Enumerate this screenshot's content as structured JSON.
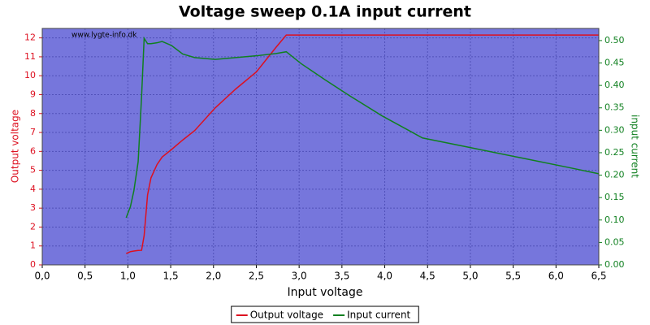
{
  "chart_data": {
    "type": "line",
    "title": "Voltage sweep 0.1A input current",
    "watermark": "www.lygte-info.dk",
    "x_label": "Input voltage",
    "y_label": "Output voltage",
    "y2_label": "input current",
    "x": [
      0.98,
      1.03,
      1.07,
      1.12,
      1.16,
      1.19,
      1.23,
      1.27,
      1.34,
      1.4,
      1.51,
      1.64,
      1.78,
      2.02,
      2.26,
      2.5,
      2.73,
      2.85,
      3.02,
      3.3,
      3.59,
      3.97,
      4.44,
      5.01,
      5.58,
      6.15,
      6.5
    ],
    "series": [
      {
        "name": "Output voltage",
        "color": "#dd1020",
        "axis": "y",
        "values": [
          0.6,
          0.7,
          0.73,
          0.76,
          0.77,
          1.55,
          3.7,
          4.6,
          5.3,
          5.7,
          6.1,
          6.6,
          7.1,
          8.3,
          9.3,
          10.2,
          11.5,
          12.15,
          12.15,
          12.15,
          12.15,
          12.15,
          12.15,
          12.15,
          12.15,
          12.15,
          12.15
        ]
      },
      {
        "name": "Input current",
        "color": "#108020",
        "axis": "y2",
        "values": [
          0.105,
          0.13,
          0.165,
          0.23,
          0.375,
          0.505,
          0.493,
          0.493,
          0.495,
          0.498,
          0.489,
          0.47,
          0.462,
          0.458,
          0.462,
          0.466,
          0.471,
          0.475,
          0.449,
          0.413,
          0.377,
          0.332,
          0.283,
          0.261,
          0.239,
          0.217,
          0.203
        ]
      }
    ],
    "xlim": [
      0,
      6.5
    ],
    "xticks": [
      {
        "value": 0,
        "label": "0,0"
      },
      {
        "value": 0.5,
        "label": "0,5"
      },
      {
        "value": 1,
        "label": "1,0"
      },
      {
        "value": 1.5,
        "label": "1,5"
      },
      {
        "value": 2,
        "label": "2,0"
      },
      {
        "value": 2.5,
        "label": "2,5"
      },
      {
        "value": 3,
        "label": "3,0"
      },
      {
        "value": 3.5,
        "label": "3,5"
      },
      {
        "value": 4,
        "label": "4,0"
      },
      {
        "value": 4.5,
        "label": "4,5"
      },
      {
        "value": 5,
        "label": "5,0"
      },
      {
        "value": 5.5,
        "label": "5,5"
      },
      {
        "value": 6,
        "label": "6,0"
      },
      {
        "value": 6.5,
        "label": "6,5"
      }
    ],
    "ylim": [
      0,
      12.5
    ],
    "yticks": [
      0,
      1,
      2,
      3,
      4,
      5,
      6,
      7,
      8,
      9,
      10,
      11,
      12
    ],
    "y2lim": [
      0,
      0.527
    ],
    "y2ticks": [
      {
        "value": 0,
        "label": "0.00"
      },
      {
        "value": 0.05,
        "label": "0.05"
      },
      {
        "value": 0.1,
        "label": "0.10"
      },
      {
        "value": 0.15,
        "label": "0.15"
      },
      {
        "value": 0.2,
        "label": "0.20"
      },
      {
        "value": 0.25,
        "label": "0.25"
      },
      {
        "value": 0.3,
        "label": "0.30"
      },
      {
        "value": 0.35,
        "label": "0.35"
      },
      {
        "value": 0.4,
        "label": "0.40"
      },
      {
        "value": 0.45,
        "label": "0.45"
      },
      {
        "value": 0.5,
        "label": "0.50"
      }
    ],
    "grid": true,
    "plot_background": "#7676dc",
    "legend": "bottom"
  }
}
